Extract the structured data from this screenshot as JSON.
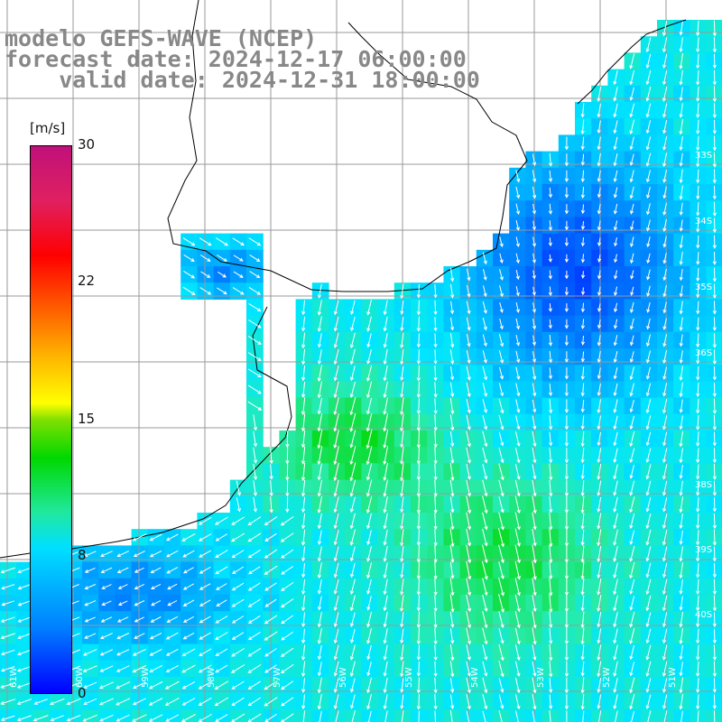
{
  "title_lines": [
    "modelo GEFS-WAVE (NCEP)",
    "forecast date: 2024-12-17 06:00:00",
    "    valid date: 2024-12-31 18:00:00"
  ],
  "colorbar": {
    "unit": "[m/s]",
    "ticks": [
      {
        "label": "30",
        "value": 30
      },
      {
        "label": "22",
        "value": 22
      },
      {
        "label": "15",
        "value": 15
      },
      {
        "label": "8",
        "value": 8
      },
      {
        "label": "0",
        "value": 0
      }
    ],
    "min": 0,
    "max": 30
  },
  "lat_labels": [
    "33S",
    "34S",
    "35S",
    "36S",
    "38S",
    "39S",
    "40S"
  ],
  "lon_labels": [
    "61W",
    "60W",
    "59W",
    "58W",
    "57W",
    "56W",
    "55W",
    "54W",
    "53W",
    "52W",
    "51W"
  ],
  "colors": {
    "title": "#888888",
    "land": "#ffffff",
    "coast": "#000000",
    "grid": "#999999",
    "arrow": "#ffffff"
  }
}
